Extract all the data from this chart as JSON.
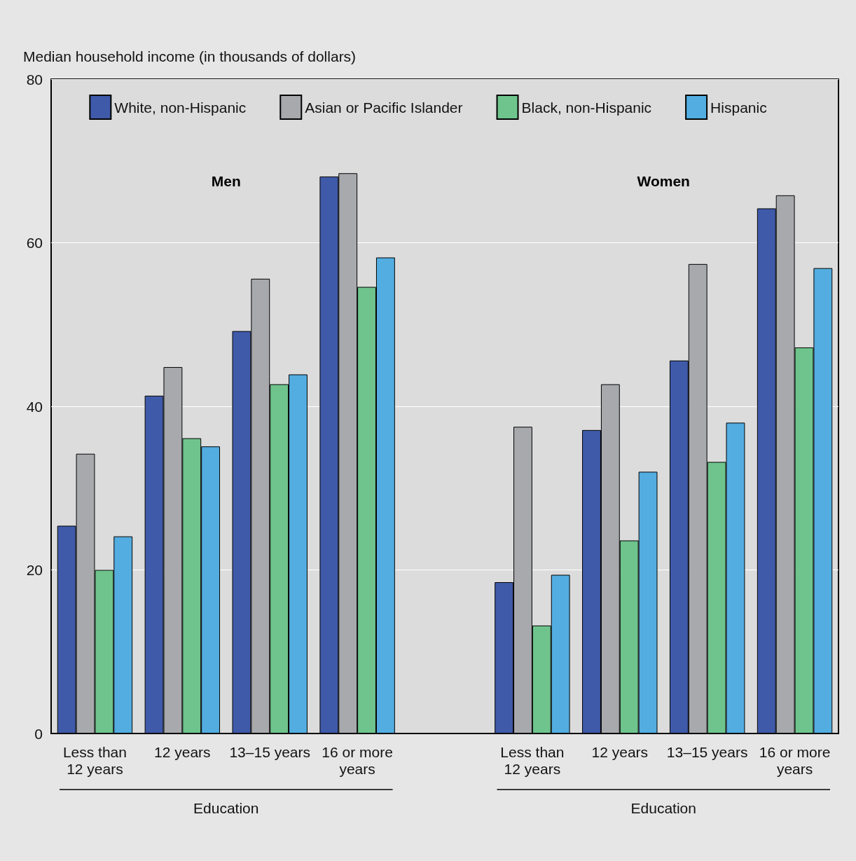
{
  "chart_data": {
    "type": "bar",
    "ylabel": "Median household income (in thousands of dollars)",
    "categories": [
      "Less than\n12 years",
      "12 years",
      "13–15 years",
      "16 or more\nyears",
      null,
      "Less than\n12 years",
      "12 years",
      "13–15 years",
      "16 or more\nyears"
    ],
    "series": [
      {
        "name": "White, non-Hispanic",
        "color": "#3f5aa9",
        "values": [
          25.4,
          41.3,
          49.2,
          68.1,
          null,
          18.5,
          37.1,
          45.6,
          64.2
        ]
      },
      {
        "name": "Asian or Pacific Islander",
        "color": "#a7a9ad",
        "values": [
          34.2,
          44.8,
          55.6,
          68.5,
          null,
          37.5,
          42.7,
          57.4,
          65.8
        ]
      },
      {
        "name": "Black, non-Hispanic",
        "color": "#6ec48c",
        "values": [
          20.0,
          36.1,
          42.7,
          54.6,
          null,
          13.2,
          23.6,
          33.2,
          47.2
        ]
      },
      {
        "name": "Hispanic",
        "color": "#53ade0",
        "values": [
          24.1,
          35.1,
          43.9,
          58.2,
          null,
          19.4,
          32.0,
          38.0,
          56.9
        ]
      }
    ],
    "annotations": [
      "Men",
      "Women",
      "Education",
      "Education"
    ],
    "ylim": [
      0,
      80
    ],
    "yticks": [
      0,
      20,
      40,
      60,
      80
    ],
    "grid": "y",
    "legend": "top"
  }
}
